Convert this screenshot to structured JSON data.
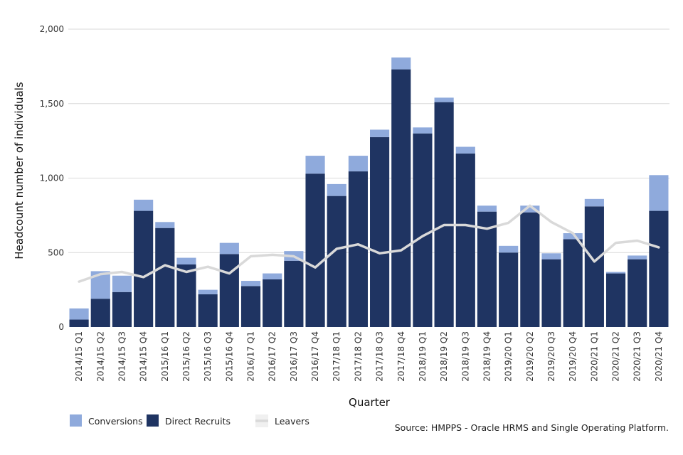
{
  "chart_data": {
    "type": "bar",
    "stacked": true,
    "title": "",
    "xlabel": "Quarter",
    "ylabel": "Headcount number of individuals",
    "ylim": [
      0,
      2000
    ],
    "yticks": [
      0,
      500,
      1000,
      1500,
      2000
    ],
    "ytick_labels": [
      "0",
      "500",
      "1,000",
      "1,500",
      "2,000"
    ],
    "grid": true,
    "legend_position": "bottom-left",
    "categories": [
      "2014/15  Q1",
      "2014/15  Q2",
      "2014/15  Q3",
      "2014/15  Q4",
      "2015/16  Q1",
      "2015/16  Q2",
      "2015/16  Q3",
      "2015/16  Q4",
      "2016/17  Q1",
      "2016/17  Q2",
      "2016/17  Q3",
      "2016/17  Q4",
      "2017/18  Q1",
      "2017/18  Q2",
      "2017/18  Q3",
      "2017/18  Q4",
      "2018/19  Q1",
      "2018/19  Q2",
      "2018/19  Q3",
      "2018/19  Q4",
      "2019/20  Q1",
      "2019/20  Q2",
      "2019/20  Q3",
      "2019/20  Q4",
      "2020/21  Q1",
      "2020/21  Q2",
      "2020/21  Q3",
      "2020/21  Q4"
    ],
    "series": [
      {
        "name": "Direct Recruits",
        "kind": "bar",
        "color": "#1f3462",
        "values": [
          50,
          190,
          235,
          780,
          665,
          420,
          220,
          490,
          275,
          320,
          445,
          1030,
          880,
          1045,
          1275,
          1730,
          1300,
          1510,
          1165,
          775,
          500,
          770,
          455,
          590,
          810,
          360,
          455,
          780
        ]
      },
      {
        "name": "Conversions",
        "kind": "bar",
        "color": "#8faadc",
        "values": [
          75,
          185,
          110,
          75,
          40,
          45,
          30,
          75,
          35,
          40,
          65,
          120,
          80,
          105,
          50,
          80,
          40,
          30,
          45,
          40,
          45,
          45,
          40,
          40,
          50,
          10,
          25,
          240
        ]
      },
      {
        "name": "Leavers",
        "kind": "line",
        "color": "#d9d9d9",
        "values": [
          305,
          355,
          370,
          335,
          415,
          370,
          405,
          360,
          475,
          485,
          475,
          400,
          525,
          555,
          495,
          515,
          610,
          685,
          685,
          660,
          700,
          815,
          705,
          630,
          440,
          565,
          580,
          535
        ]
      }
    ],
    "legend": [
      {
        "label": "Conversions",
        "color": "#8faadc",
        "shape": "square"
      },
      {
        "label": "Direct Recruits",
        "color": "#1f3462",
        "shape": "square"
      },
      {
        "label": "Leavers",
        "color": "#d9d9d9",
        "shape": "line"
      }
    ],
    "source": "Source: HMPPS - Oracle HRMS and Single Operating Platform."
  }
}
